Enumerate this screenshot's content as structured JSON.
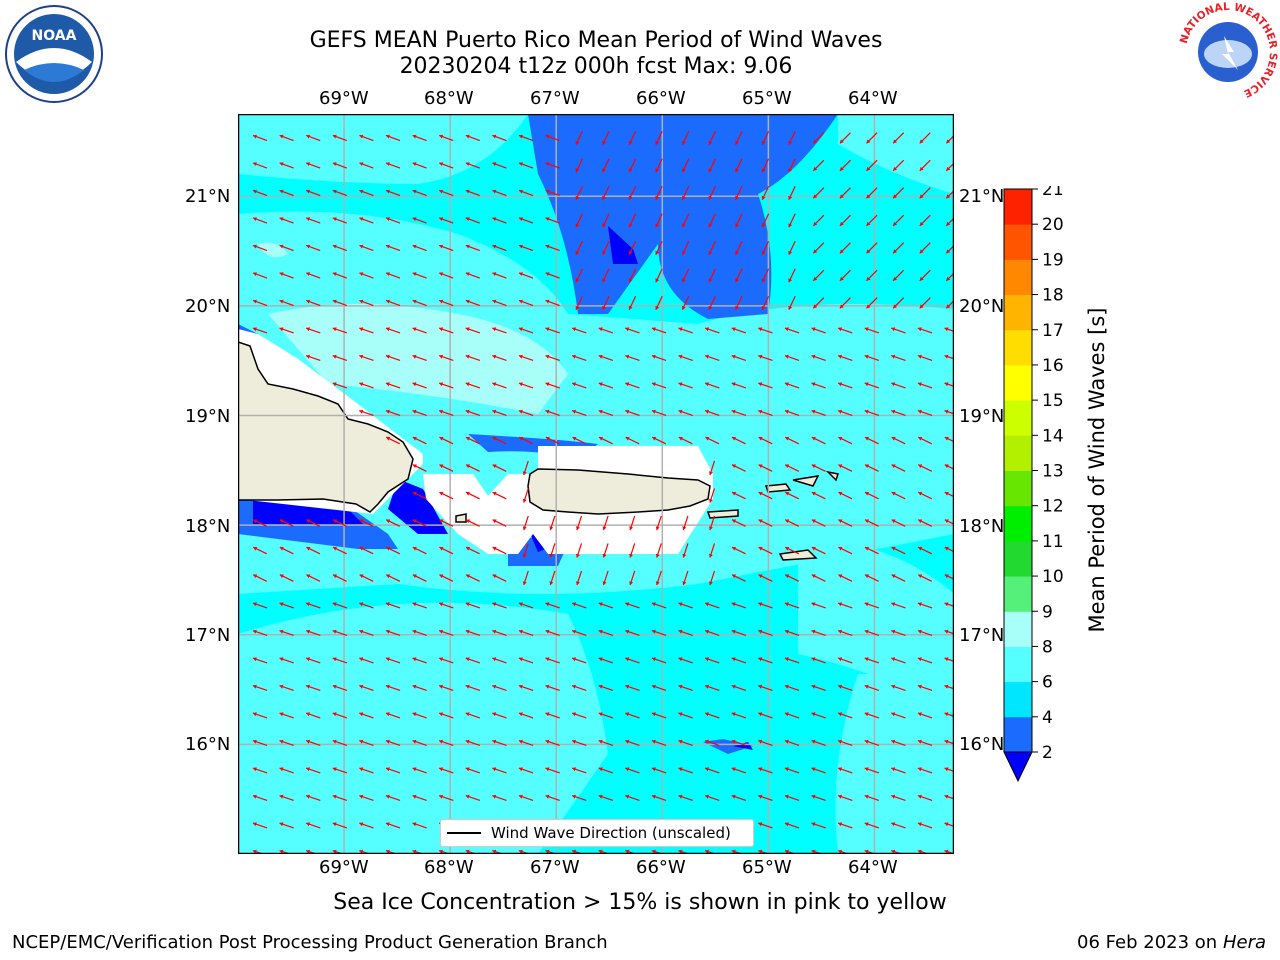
{
  "title": {
    "line1": "GEFS MEAN Puerto Rico Mean Period of Wind Waves",
    "line2": "20230204 t12z 000h fcst   Max: 9.06"
  },
  "map": {
    "lon_labels": [
      "69°W",
      "68°W",
      "67°W",
      "66°W",
      "65°W",
      "64°W"
    ],
    "lat_labels": [
      "21°N",
      "20°N",
      "19°N",
      "18°N",
      "17°N",
      "16°N"
    ],
    "extent": {
      "lon": [
        -70.0,
        -63.25
      ],
      "lat": [
        15.0,
        21.75
      ]
    },
    "land_color": "#eeecda",
    "arrow_color": "#ff0000",
    "legend_label": "Wind Wave Direction (unscaled)"
  },
  "colorbar": {
    "label": "Mean Period of Wind Waves [s]",
    "ticks": [
      "2",
      "4",
      "6",
      "8",
      "9",
      "10",
      "11",
      "12",
      "13",
      "14",
      "15",
      "16",
      "17",
      "18",
      "19",
      "20",
      "21"
    ],
    "colors": [
      "#1b6bff",
      "#00e6ff",
      "#55ffff",
      "#a8fffa",
      "#55f07a",
      "#22d930",
      "#00ee00",
      "#66e600",
      "#b2f000",
      "#ccff00",
      "#ffff00",
      "#ffdd00",
      "#ffb400",
      "#ff8800",
      "#ff5500",
      "#ff2200",
      "#ff0000"
    ],
    "under_color": "#0000ff"
  },
  "ice_note": "Sea Ice Concentration > 15% is shown in pink to yellow",
  "footer": {
    "left": "NCEP/EMC/Verification Post Processing Product Generation Branch",
    "date": "06 Feb 2023 on",
    "machine": "Hera"
  },
  "logos": {
    "noaa_text": "NOAA",
    "nws_text": "NATIONAL WEATHER SERVICE"
  }
}
